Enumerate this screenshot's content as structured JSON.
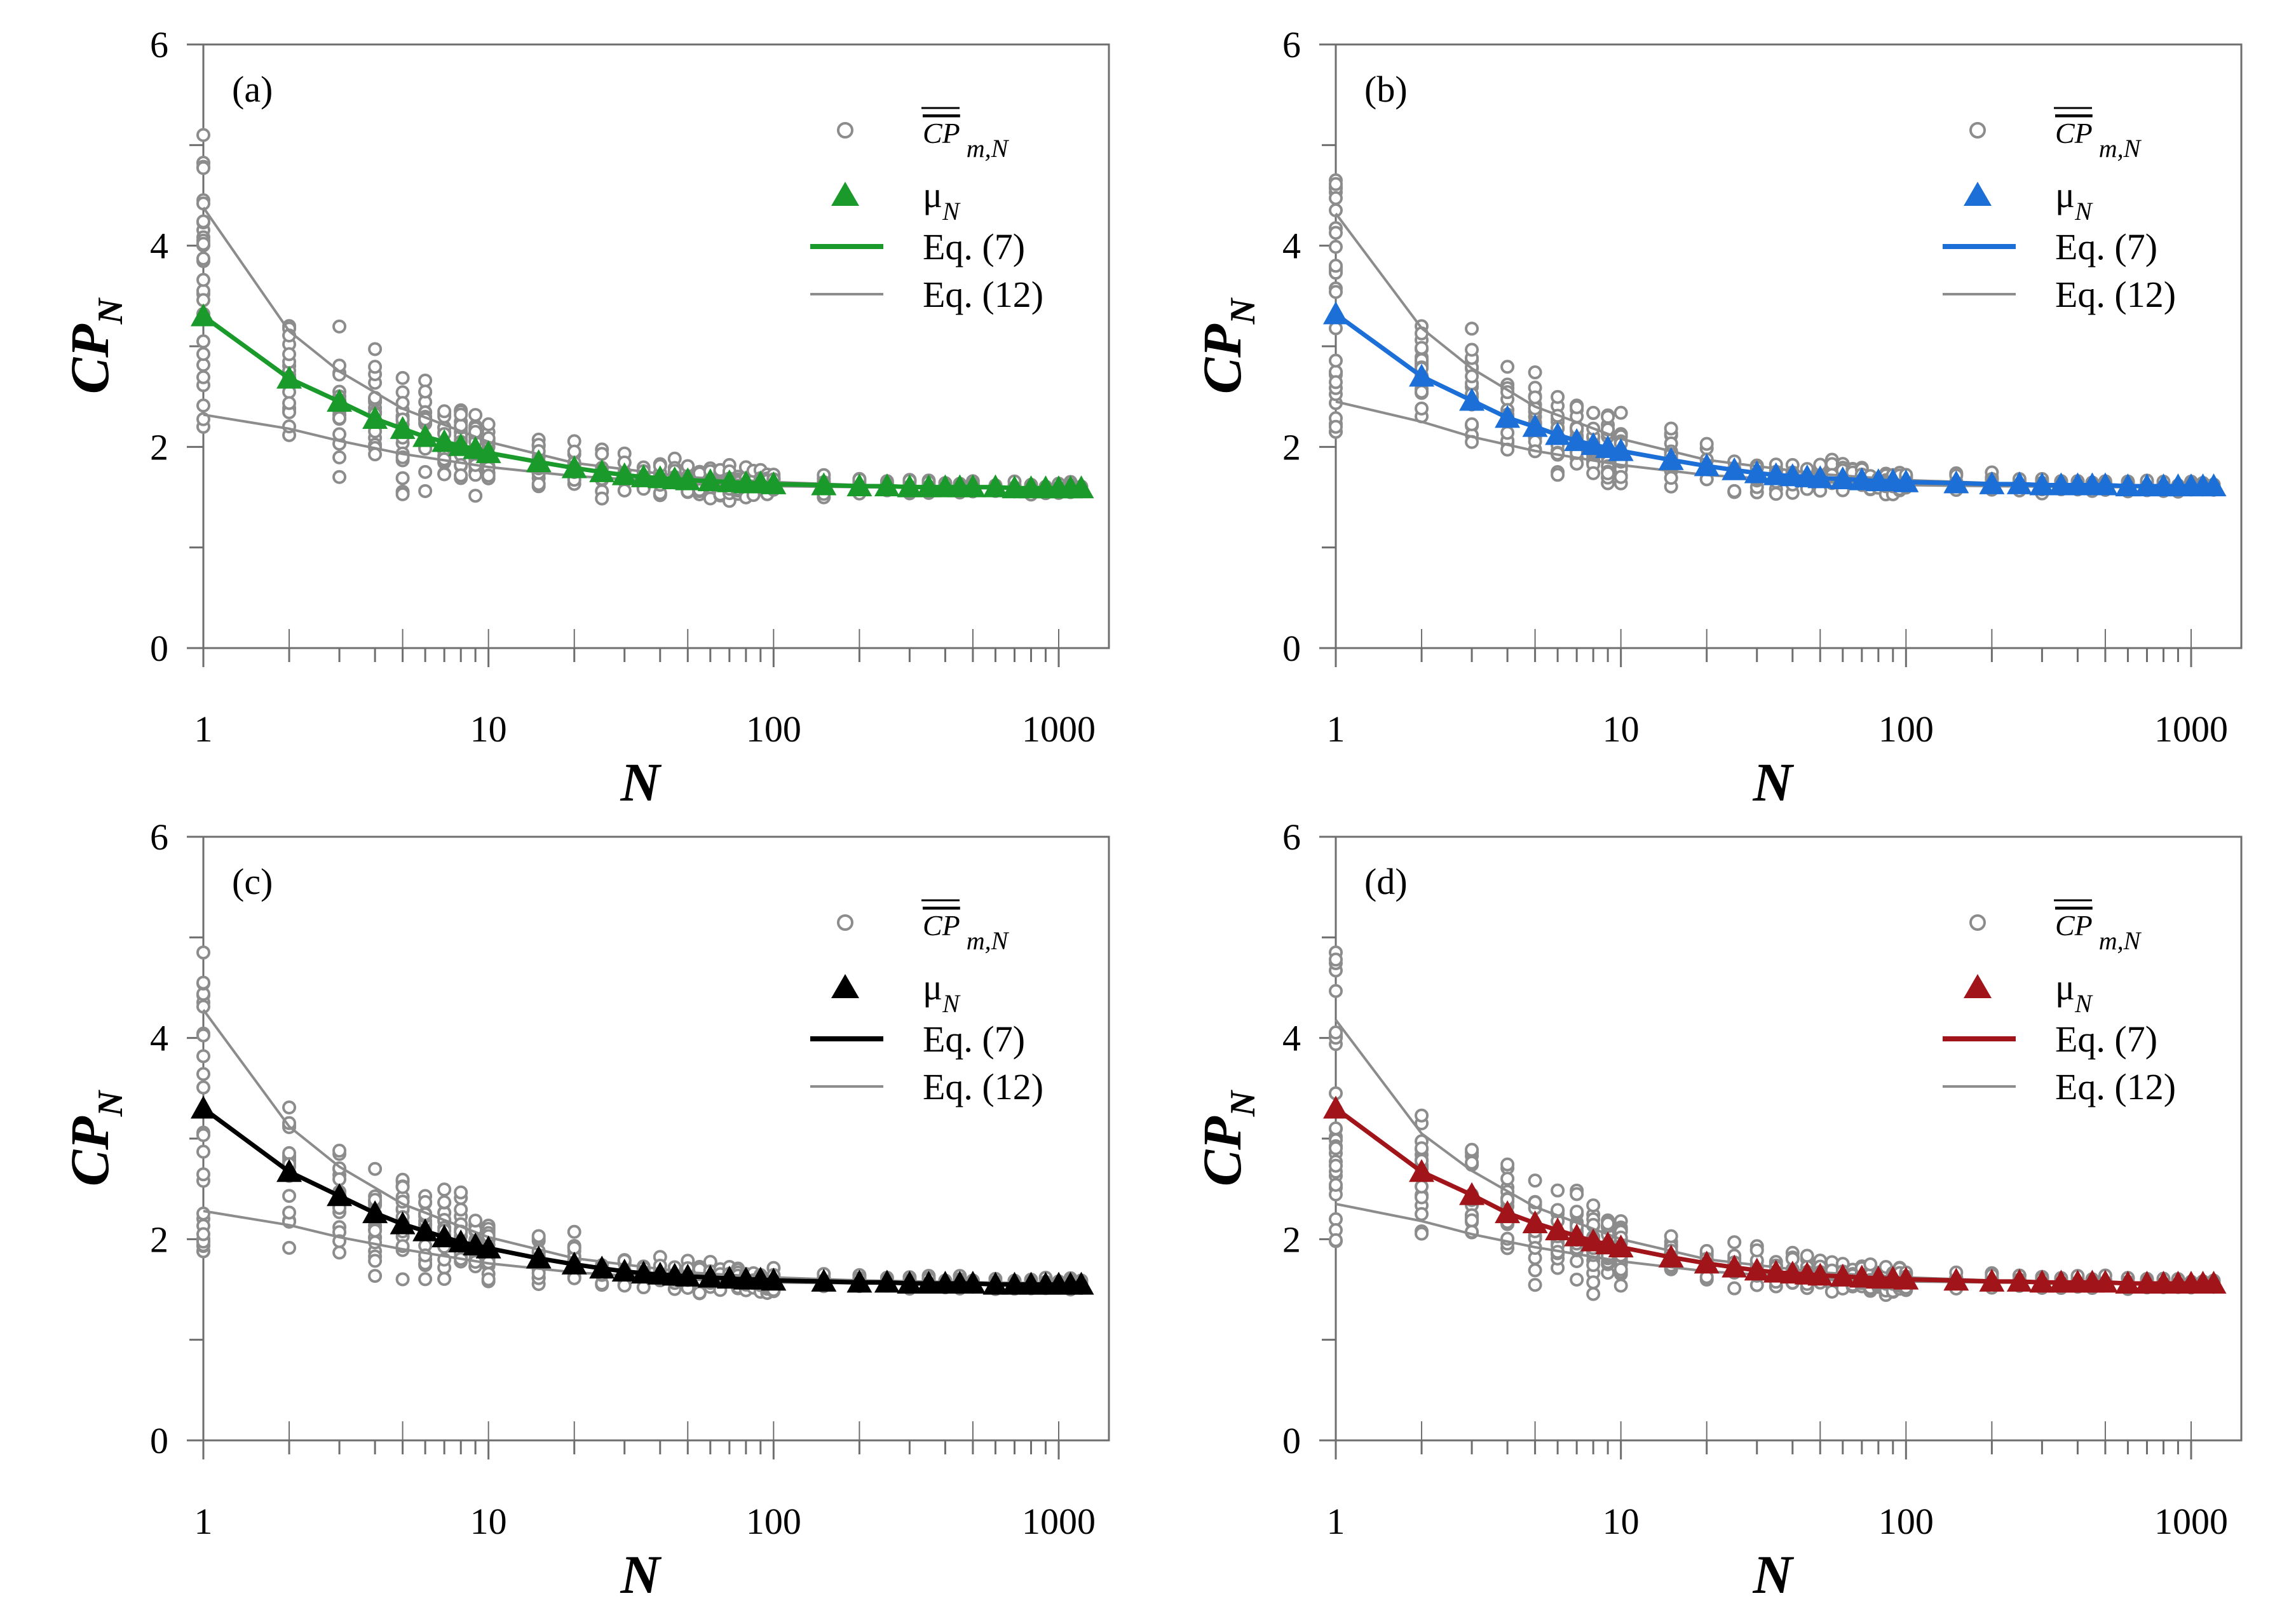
{
  "chart_data": [
    {
      "type": "scatter",
      "panel_label": "(a)",
      "accent_color": "#1a9a2a",
      "xlabel": "N",
      "ylabel": "CP",
      "ylabel_sub": "N",
      "xscale": "log",
      "xlim": [
        1,
        1500
      ],
      "ylim": [
        0,
        6
      ],
      "x_ticks": [
        1,
        10,
        100,
        1000
      ],
      "x_tick_labels": [
        "1",
        "10",
        "100",
        "1000"
      ],
      "y_ticks": [
        0,
        2,
        4,
        6
      ],
      "y_tick_labels": [
        "0",
        "2",
        "4",
        "6"
      ],
      "legend_position": "top-right",
      "legend": [
        {
          "marker": "circle",
          "text": "CP",
          "sub": "m,N"
        },
        {
          "marker": "triangle",
          "text": "μ",
          "sub": "N"
        },
        {
          "marker": "line",
          "text": "Eq. (7)"
        },
        {
          "marker": "thin-line",
          "text": "Eq. (12)"
        }
      ],
      "scatter_spread": {
        "n1_low": 2.2,
        "n1_high": 5.1,
        "scale": 1.1
      },
      "series": [
        {
          "name": "μN",
          "x": [
            1,
            2,
            3,
            4,
            5,
            6,
            7,
            8,
            9,
            10,
            15,
            20,
            25,
            30,
            35,
            40,
            45,
            50,
            60,
            70,
            80,
            90,
            100,
            150,
            200,
            250,
            300,
            350,
            400,
            450,
            500,
            600,
            700,
            800,
            900,
            1000,
            1100,
            1200
          ],
          "y": [
            3.3,
            2.68,
            2.45,
            2.28,
            2.18,
            2.1,
            2.05,
            2.01,
            1.98,
            1.94,
            1.85,
            1.79,
            1.75,
            1.72,
            1.7,
            1.69,
            1.68,
            1.67,
            1.66,
            1.65,
            1.64,
            1.64,
            1.63,
            1.62,
            1.61,
            1.61,
            1.6,
            1.6,
            1.6,
            1.6,
            1.6,
            1.6,
            1.59,
            1.59,
            1.59,
            1.59,
            1.59,
            1.59
          ]
        },
        {
          "name": "Eq. (12) upper",
          "x": [
            1,
            2,
            3,
            5,
            10,
            20,
            50,
            100,
            200,
            500,
            1200
          ],
          "y": [
            4.38,
            3.15,
            2.75,
            2.38,
            2.05,
            1.84,
            1.7,
            1.65,
            1.62,
            1.6,
            1.59
          ]
        },
        {
          "name": "Eq. (12) lower",
          "x": [
            1,
            2,
            3,
            5,
            10,
            20,
            50,
            100,
            200,
            500,
            1200
          ],
          "y": [
            2.32,
            2.18,
            2.06,
            1.93,
            1.8,
            1.71,
            1.64,
            1.61,
            1.6,
            1.59,
            1.58
          ]
        }
      ]
    },
    {
      "type": "scatter",
      "panel_label": "(b)",
      "accent_color": "#1c6fd6",
      "xlabel": "N",
      "ylabel": "CP",
      "ylabel_sub": "N",
      "xscale": "log",
      "xlim": [
        1,
        1500
      ],
      "ylim": [
        0,
        6
      ],
      "x_ticks": [
        1,
        10,
        100,
        1000
      ],
      "x_tick_labels": [
        "1",
        "10",
        "100",
        "1000"
      ],
      "y_ticks": [
        0,
        2,
        4,
        6
      ],
      "y_tick_labels": [
        "0",
        "2",
        "4",
        "6"
      ],
      "legend_position": "top-right",
      "legend": [
        {
          "marker": "circle",
          "text": "CP",
          "sub": "m,N"
        },
        {
          "marker": "triangle",
          "text": "μ",
          "sub": "N"
        },
        {
          "marker": "line",
          "text": "Eq. (7)"
        },
        {
          "marker": "thin-line",
          "text": "Eq. (12)"
        }
      ],
      "scatter_spread": {
        "n1_low": 2.15,
        "n1_high": 4.65,
        "scale": 1.0
      },
      "series": [
        {
          "name": "μN",
          "x": [
            1,
            2,
            3,
            4,
            5,
            6,
            7,
            8,
            9,
            10,
            15,
            20,
            25,
            30,
            35,
            40,
            45,
            50,
            60,
            70,
            80,
            90,
            100,
            150,
            200,
            250,
            300,
            350,
            400,
            450,
            500,
            600,
            700,
            800,
            900,
            1000,
            1100,
            1200
          ],
          "y": [
            3.32,
            2.7,
            2.46,
            2.29,
            2.2,
            2.12,
            2.06,
            2.02,
            1.99,
            1.96,
            1.87,
            1.81,
            1.77,
            1.74,
            1.72,
            1.71,
            1.7,
            1.69,
            1.68,
            1.67,
            1.66,
            1.66,
            1.65,
            1.64,
            1.63,
            1.63,
            1.62,
            1.62,
            1.62,
            1.62,
            1.62,
            1.61,
            1.61,
            1.61,
            1.61,
            1.61,
            1.61,
            1.61
          ]
        },
        {
          "name": "Eq. (12) upper",
          "x": [
            1,
            2,
            3,
            5,
            10,
            20,
            50,
            100,
            200,
            500,
            1200
          ],
          "y": [
            4.32,
            3.18,
            2.78,
            2.4,
            2.08,
            1.87,
            1.73,
            1.67,
            1.64,
            1.62,
            1.61
          ]
        },
        {
          "name": "Eq. (12) lower",
          "x": [
            1,
            2,
            3,
            5,
            10,
            20,
            50,
            100,
            200,
            500,
            1200
          ],
          "y": [
            2.45,
            2.25,
            2.1,
            1.96,
            1.82,
            1.72,
            1.65,
            1.62,
            1.61,
            1.6,
            1.6
          ]
        }
      ]
    },
    {
      "type": "scatter",
      "panel_label": "(c)",
      "accent_color": "#000000",
      "xlabel": "N",
      "ylabel": "CP",
      "ylabel_sub": "N",
      "xscale": "log",
      "xlim": [
        1,
        1500
      ],
      "ylim": [
        0,
        6
      ],
      "x_ticks": [
        1,
        10,
        100,
        1000
      ],
      "x_tick_labels": [
        "1",
        "10",
        "100",
        "1000"
      ],
      "y_ticks": [
        0,
        2,
        4,
        6
      ],
      "y_tick_labels": [
        "0",
        "2",
        "4",
        "6"
      ],
      "legend_position": "top-right",
      "legend": [
        {
          "marker": "circle",
          "text": "CP",
          "sub": "m,N"
        },
        {
          "marker": "triangle",
          "text": "μ",
          "sub": "N"
        },
        {
          "marker": "line",
          "text": "Eq. (7)"
        },
        {
          "marker": "thin-line",
          "text": "Eq. (12)"
        }
      ],
      "scatter_spread": {
        "n1_low": 1.88,
        "n1_high": 4.85,
        "scale": 1.05
      },
      "series": [
        {
          "name": "μN",
          "x": [
            1,
            2,
            3,
            4,
            5,
            6,
            7,
            8,
            9,
            10,
            15,
            20,
            25,
            30,
            35,
            40,
            45,
            50,
            60,
            70,
            80,
            90,
            100,
            150,
            200,
            250,
            300,
            350,
            400,
            450,
            500,
            600,
            700,
            800,
            900,
            1000,
            1100,
            1200
          ],
          "y": [
            3.3,
            2.67,
            2.43,
            2.26,
            2.15,
            2.08,
            2.02,
            1.97,
            1.94,
            1.91,
            1.81,
            1.75,
            1.71,
            1.68,
            1.66,
            1.65,
            1.64,
            1.63,
            1.62,
            1.61,
            1.6,
            1.6,
            1.59,
            1.58,
            1.57,
            1.57,
            1.56,
            1.56,
            1.56,
            1.56,
            1.56,
            1.55,
            1.55,
            1.55,
            1.55,
            1.55,
            1.55,
            1.55
          ]
        },
        {
          "name": "Eq. (12) upper",
          "x": [
            1,
            2,
            3,
            5,
            10,
            20,
            50,
            100,
            200,
            500,
            1200
          ],
          "y": [
            4.28,
            3.12,
            2.72,
            2.35,
            2.02,
            1.81,
            1.67,
            1.62,
            1.59,
            1.57,
            1.56
          ]
        },
        {
          "name": "Eq. (12) lower",
          "x": [
            1,
            2,
            3,
            5,
            10,
            20,
            50,
            100,
            200,
            500,
            1200
          ],
          "y": [
            2.28,
            2.14,
            2.02,
            1.9,
            1.76,
            1.67,
            1.6,
            1.57,
            1.56,
            1.55,
            1.55
          ]
        }
      ]
    },
    {
      "type": "scatter",
      "panel_label": "(d)",
      "accent_color": "#a0141a",
      "xlabel": "N",
      "ylabel": "CP",
      "ylabel_sub": "N",
      "xscale": "log",
      "xlim": [
        1,
        1500
      ],
      "ylim": [
        0,
        6
      ],
      "x_ticks": [
        1,
        10,
        100,
        1000
      ],
      "x_tick_labels": [
        "1",
        "10",
        "100",
        "1000"
      ],
      "y_ticks": [
        0,
        2,
        4,
        6
      ],
      "y_tick_labels": [
        "0",
        "2",
        "4",
        "6"
      ],
      "legend_position": "top-right",
      "legend": [
        {
          "marker": "circle",
          "text": "CP",
          "sub": "m,N"
        },
        {
          "marker": "triangle",
          "text": "μ",
          "sub": "N"
        },
        {
          "marker": "line",
          "text": "Eq. (7)"
        },
        {
          "marker": "thin-line",
          "text": "Eq. (12)"
        }
      ],
      "scatter_spread": {
        "n1_low": 1.98,
        "n1_high": 4.85,
        "scale": 1.05
      },
      "series": [
        {
          "name": "μN",
          "x": [
            1,
            2,
            3,
            4,
            5,
            6,
            7,
            8,
            9,
            10,
            15,
            20,
            25,
            30,
            35,
            40,
            45,
            50,
            60,
            70,
            80,
            90,
            100,
            150,
            200,
            250,
            300,
            350,
            400,
            450,
            500,
            600,
            700,
            800,
            900,
            1000,
            1100,
            1200
          ],
          "y": [
            3.3,
            2.67,
            2.44,
            2.26,
            2.16,
            2.09,
            2.03,
            1.98,
            1.95,
            1.92,
            1.82,
            1.76,
            1.72,
            1.69,
            1.67,
            1.66,
            1.65,
            1.64,
            1.63,
            1.62,
            1.61,
            1.61,
            1.6,
            1.59,
            1.58,
            1.58,
            1.57,
            1.57,
            1.57,
            1.57,
            1.57,
            1.56,
            1.56,
            1.56,
            1.56,
            1.56,
            1.56,
            1.56
          ]
        },
        {
          "name": "Eq. (12) upper",
          "x": [
            1,
            2,
            3,
            5,
            10,
            20,
            50,
            100,
            200,
            500,
            1200
          ],
          "y": [
            4.18,
            3.05,
            2.68,
            2.32,
            2.0,
            1.8,
            1.67,
            1.62,
            1.59,
            1.57,
            1.56
          ]
        },
        {
          "name": "Eq. (12) lower",
          "x": [
            1,
            2,
            3,
            5,
            10,
            20,
            50,
            100,
            200,
            500,
            1200
          ],
          "y": [
            2.35,
            2.18,
            2.05,
            1.92,
            1.78,
            1.68,
            1.61,
            1.58,
            1.57,
            1.56,
            1.55
          ]
        }
      ]
    }
  ]
}
